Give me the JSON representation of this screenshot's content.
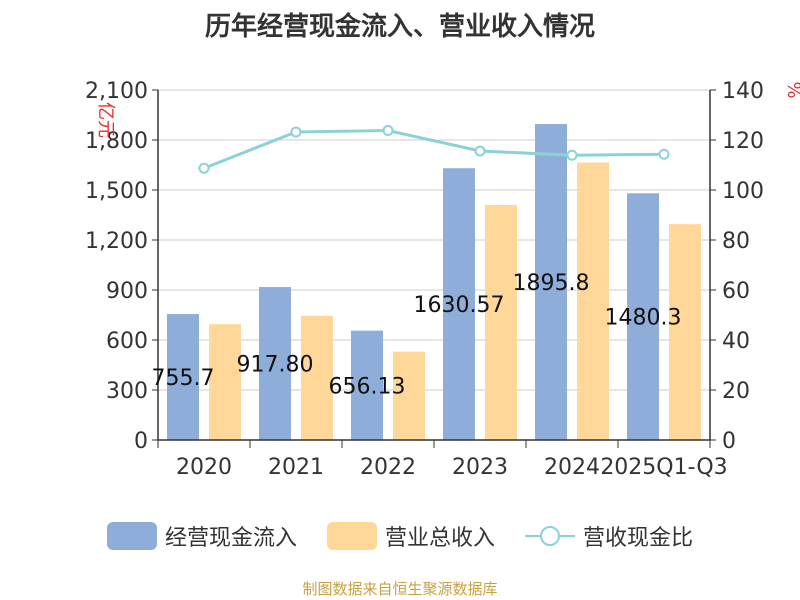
{
  "chart_data": {
    "type": "bar",
    "title": "历年经营现金流入、营业收入情况",
    "categories": [
      "2020",
      "2021",
      "2022",
      "2023",
      "2024",
      "2025Q1-Q3"
    ],
    "series": [
      {
        "name": "经营现金流入",
        "type": "bar",
        "axis": "left",
        "color": "#8EADD9",
        "values": [
          755.7,
          917.8,
          656.13,
          1630.57,
          1895.8,
          1480.3
        ]
      },
      {
        "name": "营业总收入",
        "type": "bar",
        "axis": "left",
        "color": "#FFD899",
        "values": [
          695,
          745,
          530,
          1410,
          1665,
          1295
        ]
      },
      {
        "name": "营收现金比",
        "type": "line",
        "axis": "right",
        "color": "#8AD2D8",
        "values": [
          108.7,
          123.2,
          123.8,
          115.6,
          113.9,
          114.3
        ]
      }
    ],
    "data_labels": [
      "755.7",
      "917.80",
      "656.13",
      "1630.57",
      "1895.8",
      "1480.3"
    ],
    "left_axis": {
      "label": "亿元",
      "min": 0,
      "max": 2100,
      "ticks": [
        0,
        300,
        600,
        900,
        1200,
        1500,
        1800,
        2100
      ],
      "tick_labels": [
        "0",
        "300",
        "600",
        "900",
        "1,200",
        "1,500",
        "1,800",
        "2,100"
      ]
    },
    "right_axis": {
      "label": "%",
      "min": 0,
      "max": 140,
      "ticks": [
        0,
        20,
        40,
        60,
        80,
        100,
        120,
        140
      ],
      "tick_labels": [
        "0",
        "20",
        "40",
        "60",
        "80",
        "100",
        "120",
        "140"
      ]
    },
    "grid": true,
    "legend_position": "bottom"
  },
  "legend": {
    "items": [
      "经营现金流入",
      "营业总收入",
      "营收现金比"
    ]
  },
  "source_text": "制图数据来自恒生聚源数据库"
}
